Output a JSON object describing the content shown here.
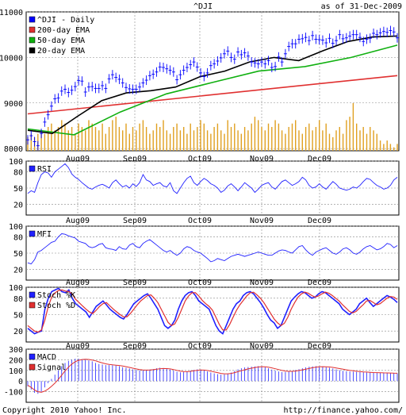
{
  "header": {
    "title": "^DJI",
    "as_of": "as of 31-Dec-2009"
  },
  "footer": {
    "copyright": "Copyright 2010 Yahoo! Inc.",
    "url": "http://finance.yahoo.com/"
  },
  "colors": {
    "price": "#0000ff",
    "ema200": "#e03030",
    "ema50": "#10b010",
    "ema20": "#000000",
    "volume": "#e0a020",
    "grid": "#888888",
    "indicator": "#2020ff"
  },
  "chart_data": [
    {
      "panel": "price",
      "type": "line",
      "ylim": [
        7950,
        11000
      ],
      "yticks": [
        8000,
        9000,
        10000,
        11000
      ],
      "month_labels": [
        "Aug09",
        "Sep09",
        "Oct09",
        "Nov09",
        "Dec09"
      ],
      "legend": [
        "^DJI - Daily",
        "200-day EMA",
        "50-day EMA",
        "20-day EMA"
      ],
      "series": [
        {
          "name": "^DJI - Daily",
          "values": [
            8190,
            8280,
            8150,
            8060,
            8330,
            8580,
            8740,
            8930,
            9090,
            9110,
            9260,
            9300,
            9230,
            9280,
            9360,
            9490,
            9480,
            9240,
            9350,
            9360,
            9320,
            9320,
            9380,
            9320,
            9530,
            9620,
            9560,
            9520,
            9440,
            9340,
            9310,
            9300,
            9300,
            9350,
            9440,
            9500,
            9600,
            9630,
            9680,
            9790,
            9780,
            9750,
            9720,
            9680,
            9510,
            9620,
            9720,
            9780,
            9840,
            9900,
            9790,
            9660,
            9580,
            9660,
            9820,
            9860,
            9920,
            9990,
            10080,
            10140,
            10000,
            9960,
            10120,
            10060,
            10100,
            10030,
            9900,
            9880,
            9860,
            9900,
            9860,
            9930,
            9780,
            9800,
            10010,
            9900,
            10080,
            10240,
            10300,
            10300,
            10400,
            10410,
            10440,
            10370,
            10480,
            10400,
            10390,
            10380,
            10320,
            10420,
            10310,
            10370,
            10500,
            10410,
            10430,
            10470,
            10500,
            10500,
            10440,
            10350,
            10400,
            10420,
            10530,
            10500,
            10540,
            10570,
            10550,
            10590,
            10560,
            10430
          ]
        },
        {
          "name": "200-day EMA",
          "values": [
            8760,
            9600
          ]
        },
        {
          "name": "50-day EMA",
          "values": [
            8430,
            8300,
            8800,
            9200,
            9450,
            9700,
            9800,
            10000,
            10270
          ]
        },
        {
          "name": "20-day EMA",
          "values": [
            8400,
            8330,
            8700,
            9050,
            9220,
            9270,
            9350,
            9580,
            9700,
            9900,
            10000,
            9930,
            10150,
            10350,
            10450,
            10470
          ]
        }
      ],
      "volume_relative": [
        4,
        5,
        4,
        5,
        6,
        5,
        7,
        8,
        6,
        7,
        9,
        8,
        6,
        7,
        5,
        8,
        7,
        6,
        9,
        8,
        7,
        6,
        8,
        5,
        7,
        9,
        10,
        7,
        6,
        8,
        5,
        7,
        6,
        8,
        9,
        7,
        5,
        6,
        8,
        7,
        9,
        6,
        5,
        7,
        8,
        6,
        7,
        5,
        8,
        6,
        7,
        9,
        8,
        6,
        5,
        7,
        8,
        6,
        5,
        9,
        7,
        8,
        6,
        5,
        7,
        6,
        8,
        10,
        9,
        7,
        6,
        8,
        7,
        9,
        8,
        6,
        5,
        7,
        8,
        9,
        6,
        5,
        7,
        8,
        6,
        7,
        9,
        6,
        8,
        5,
        4,
        6,
        7,
        5,
        9,
        10,
        14,
        8,
        6,
        7,
        5,
        7,
        6,
        5,
        3,
        2,
        3,
        2,
        1,
        2
      ]
    },
    {
      "panel": "rsi",
      "type": "line",
      "ylim": [
        0,
        100
      ],
      "yticks": [
        20,
        50,
        80,
        100
      ],
      "series": [
        {
          "name": "RSI",
          "values": [
            40,
            45,
            42,
            60,
            75,
            80,
            78,
            70,
            80,
            85,
            90,
            95,
            88,
            76,
            70,
            66,
            60,
            55,
            50,
            48,
            52,
            55,
            57,
            54,
            50,
            60,
            65,
            58,
            52,
            55,
            50,
            58,
            53,
            60,
            75,
            65,
            62,
            55,
            58,
            60,
            54,
            52,
            60,
            45,
            40,
            50,
            60,
            68,
            72,
            60,
            55,
            62,
            68,
            64,
            58,
            55,
            50,
            42,
            46,
            54,
            58,
            52,
            45,
            52,
            60,
            55,
            50,
            42,
            48,
            55,
            58,
            60,
            52,
            48,
            55,
            62,
            65,
            60,
            55,
            58,
            62,
            70,
            65,
            55,
            50,
            52,
            58,
            52,
            48,
            55,
            62,
            57,
            50,
            48,
            46,
            48,
            52,
            50,
            55,
            62,
            68,
            66,
            60,
            55,
            52,
            48,
            50,
            55,
            65,
            70
          ]
        }
      ]
    },
    {
      "panel": "mfi",
      "type": "line",
      "ylim": [
        0,
        100
      ],
      "yticks": [
        20,
        50,
        80,
        100
      ],
      "series": [
        {
          "name": "MFI",
          "values": [
            32,
            30,
            38,
            52,
            55,
            60,
            65,
            70,
            72,
            80,
            86,
            85,
            82,
            80,
            78,
            72,
            70,
            68,
            62,
            60,
            62,
            66,
            68,
            60,
            58,
            57,
            55,
            62,
            58,
            57,
            65,
            68,
            62,
            60,
            68,
            72,
            75,
            70,
            65,
            60,
            55,
            52,
            55,
            50,
            46,
            50,
            58,
            62,
            60,
            55,
            52,
            50,
            45,
            40,
            34,
            36,
            40,
            38,
            36,
            40,
            44,
            46,
            48,
            46,
            44,
            46,
            48,
            50,
            52,
            50,
            48,
            46,
            46,
            50,
            54,
            56,
            55,
            52,
            50,
            56,
            62,
            64,
            56,
            50,
            46,
            52,
            55,
            58,
            60,
            55,
            50,
            48,
            52,
            58,
            60,
            56,
            50,
            48,
            52,
            58,
            62,
            64,
            60,
            56,
            58,
            62,
            68,
            66,
            60,
            64
          ]
        }
      ]
    },
    {
      "panel": "stoch",
      "type": "line",
      "ylim": [
        0,
        100
      ],
      "yticks": [
        20,
        50,
        80,
        100
      ],
      "series": [
        {
          "name": "Stoch %K",
          "values": [
            25,
            20,
            15,
            18,
            20,
            60,
            80,
            92,
            95,
            98,
            92,
            90,
            95,
            80,
            70,
            65,
            60,
            55,
            45,
            55,
            65,
            70,
            75,
            68,
            60,
            55,
            50,
            45,
            42,
            50,
            60,
            70,
            75,
            80,
            85,
            88,
            80,
            70,
            60,
            45,
            30,
            25,
            30,
            40,
            60,
            75,
            85,
            90,
            92,
            85,
            75,
            70,
            65,
            60,
            45,
            30,
            20,
            15,
            30,
            45,
            60,
            70,
            75,
            85,
            90,
            92,
            88,
            80,
            72,
            62,
            50,
            40,
            35,
            25,
            30,
            45,
            60,
            75,
            82,
            88,
            92,
            90,
            85,
            80,
            82,
            88,
            92,
            90,
            85,
            80,
            75,
            70,
            60,
            55,
            50,
            55,
            60,
            70,
            75,
            80,
            72,
            65,
            70,
            75,
            80,
            85,
            82,
            78,
            72
          ]
        },
        {
          "name": "Stoch %D",
          "values": [
            30,
            25,
            20,
            18,
            22,
            40,
            65,
            82,
            90,
            94,
            95,
            93,
            92,
            88,
            78,
            72,
            66,
            60,
            55,
            52,
            58,
            65,
            70,
            72,
            66,
            60,
            55,
            50,
            46,
            46,
            52,
            60,
            68,
            75,
            80,
            85,
            86,
            80,
            72,
            60,
            48,
            36,
            30,
            33,
            45,
            60,
            75,
            84,
            90,
            90,
            84,
            76,
            70,
            65,
            58,
            45,
            32,
            22,
            22,
            32,
            45,
            58,
            68,
            76,
            84,
            90,
            91,
            86,
            80,
            72,
            62,
            52,
            42,
            35,
            30,
            34,
            45,
            60,
            72,
            82,
            88,
            91,
            89,
            85,
            82,
            84,
            88,
            91,
            89,
            85,
            80,
            75,
            68,
            62,
            56,
            53,
            56,
            62,
            68,
            75,
            76,
            72,
            68,
            70,
            75,
            80,
            83,
            82,
            78
          ]
        }
      ]
    },
    {
      "panel": "macd",
      "type": "line",
      "ylim": [
        -200,
        300
      ],
      "yticks": [
        -100,
        0,
        100,
        200,
        300
      ],
      "series": [
        {
          "name": "MACD",
          "values": [
            -50,
            -80,
            -110,
            -120,
            -100,
            -60,
            -20,
            20,
            60,
            100,
            140,
            170,
            190,
            200,
            210,
            210,
            205,
            200,
            195,
            185,
            170,
            160,
            155,
            150,
            150,
            148,
            145,
            140,
            130,
            125,
            118,
            110,
            105,
            100,
            100,
            102,
            108,
            112,
            120,
            125,
            122,
            115,
            108,
            98,
            88,
            82,
            85,
            90,
            98,
            105,
            110,
            108,
            100,
            90,
            80,
            72,
            65,
            60,
            62,
            70,
            80,
            95,
            110,
            120,
            128,
            132,
            135,
            138,
            140,
            138,
            130,
            120,
            108,
            98,
            90,
            85,
            85,
            90,
            96,
            104,
            112,
            120,
            128,
            135,
            138,
            140,
            138,
            135,
            130,
            125,
            118,
            110,
            102,
            96,
            92,
            90,
            88,
            86,
            84,
            82,
            80,
            80,
            78,
            76,
            76,
            76,
            75,
            74,
            73,
            72
          ]
        },
        {
          "name": "Signal",
          "values": [
            -40,
            -60,
            -85,
            -100,
            -105,
            -95,
            -75,
            -50,
            -20,
            15,
            55,
            95,
            130,
            160,
            182,
            195,
            202,
            205,
            203,
            198,
            190,
            180,
            170,
            162,
            156,
            152,
            149,
            146,
            141,
            135,
            128,
            121,
            114,
            108,
            104,
            103,
            104,
            107,
            111,
            116,
            118,
            117,
            114,
            108,
            101,
            93,
            89,
            88,
            91,
            96,
            101,
            104,
            103,
            99,
            93,
            86,
            79,
            72,
            68,
            68,
            72,
            79,
            88,
            97,
            106,
            114,
            121,
            127,
            132,
            135,
            134,
            130,
            124,
            116,
            108,
            100,
            94,
            91,
            91,
            94,
            99,
            105,
            112,
            118,
            125,
            130,
            134,
            135,
            134,
            132,
            128,
            123,
            117,
            111,
            105,
            100,
            96,
            92,
            89,
            86,
            84,
            82,
            80,
            79,
            78,
            77,
            76,
            75,
            74,
            73
          ]
        }
      ]
    }
  ],
  "panels": {
    "price": {
      "yticks": [
        "8000",
        "9000",
        "10000",
        "11000"
      ],
      "legend": [
        "^DJI - Daily",
        "200-day EMA",
        "50-day EMA",
        "20-day EMA"
      ]
    },
    "rsi": {
      "yticks": [
        "20",
        "50",
        "80",
        "100"
      ],
      "legend": [
        "RSI"
      ],
      "months": [
        "Aug09",
        "Sep09",
        "Oct09",
        "Nov09",
        "Dec09"
      ]
    },
    "mfi": {
      "yticks": [
        "20",
        "50",
        "80",
        "100"
      ],
      "legend": [
        "MFI"
      ],
      "months": [
        "Aug09",
        "Sep09",
        "Oct09",
        "Nov09",
        "Dec09"
      ]
    },
    "stoch": {
      "yticks": [
        "20",
        "50",
        "80",
        "100"
      ],
      "legend": [
        "Stoch %K",
        "Stoch %D"
      ],
      "months": [
        "Aug09",
        "Sep09",
        "Oct09",
        "Nov09",
        "Dec09"
      ]
    },
    "macd": {
      "yticks": [
        "-100",
        "0",
        "100",
        "200",
        "300"
      ],
      "legend": [
        "MACD",
        "Signal"
      ],
      "months": [
        "Aug09",
        "Sep09",
        "Oct09",
        "Nov09",
        "Dec09"
      ]
    }
  }
}
